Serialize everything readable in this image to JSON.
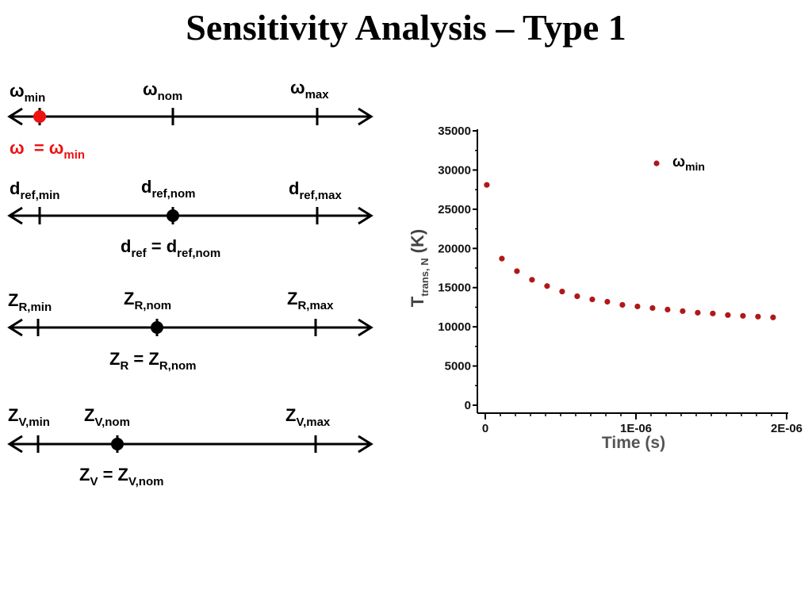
{
  "title": "Sensitivity Analysis – Type 1",
  "colors": {
    "selected_marker": "#ee1111",
    "data_points": "#b01818"
  },
  "ranges": [
    {
      "min": {
        "base": "ω",
        "sub": "min"
      },
      "nom": {
        "base": "ω",
        "sub": "nom"
      },
      "max": {
        "base": "ω",
        "sub": "max"
      },
      "equation": {
        "lhs": "ω",
        "lhs_sub": "",
        "eq": "=",
        "rhs": "ω",
        "rhs_sub": "min"
      },
      "selected": "min"
    },
    {
      "min": {
        "base": "d",
        "sub": "ref,min"
      },
      "nom": {
        "base": "d",
        "sub": "ref,nom"
      },
      "max": {
        "base": "d",
        "sub": "ref,max"
      },
      "equation": {
        "lhs": "d",
        "lhs_sub": "ref",
        "eq": "=",
        "rhs": "d",
        "rhs_sub": "ref,nom"
      },
      "selected": "nom"
    },
    {
      "min": {
        "base": "Z",
        "sub": "R,min"
      },
      "nom": {
        "base": "Z",
        "sub": "R,nom"
      },
      "max": {
        "base": "Z",
        "sub": "R,max"
      },
      "equation": {
        "lhs": "Z",
        "lhs_sub": "R",
        "eq": "=",
        "rhs": "Z",
        "rhs_sub": "R,nom"
      },
      "selected": "nom"
    },
    {
      "min": {
        "base": "Z",
        "sub": "V,min"
      },
      "nom": {
        "base": "Z",
        "sub": "V,nom"
      },
      "max": {
        "base": "Z",
        "sub": "V,max"
      },
      "equation": {
        "lhs": "Z",
        "lhs_sub": "V",
        "eq": "=",
        "rhs": "Z",
        "rhs_sub": "V,nom"
      },
      "selected": "nom"
    }
  ],
  "chart_data": {
    "type": "scatter",
    "title": "",
    "xlabel": "Time (s)",
    "ylabel": {
      "base": "T",
      "sub": "trans, N",
      "unit": "(K)"
    },
    "xlim": [
      0,
      2e-06
    ],
    "ylim": [
      0,
      35000
    ],
    "xticks": [
      0,
      1e-06,
      2e-06
    ],
    "xtick_labels": [
      "0",
      "1E-06",
      "2E-06"
    ],
    "yticks": [
      0,
      5000,
      10000,
      15000,
      20000,
      25000,
      30000,
      35000
    ],
    "ytick_labels": [
      "0",
      "5000",
      "10000",
      "15000",
      "20000",
      "25000",
      "30000",
      "35000"
    ],
    "grid": false,
    "legend_position": "top-right",
    "series": [
      {
        "name": {
          "base": "ω",
          "sub": "min"
        },
        "x": [
          1e-08,
          1.1e-07,
          2.1e-07,
          3.1e-07,
          4.1e-07,
          5.1e-07,
          6.1e-07,
          7.1e-07,
          8.1e-07,
          9.1e-07,
          1.01e-06,
          1.11e-06,
          1.21e-06,
          1.31e-06,
          1.41e-06,
          1.51e-06,
          1.61e-06,
          1.71e-06,
          1.81e-06,
          1.91e-06
        ],
        "y": [
          28100,
          18700,
          17100,
          16000,
          15200,
          14500,
          13900,
          13500,
          13200,
          12800,
          12600,
          12400,
          12200,
          12000,
          11800,
          11700,
          11500,
          11400,
          11300,
          11200
        ]
      }
    ]
  }
}
